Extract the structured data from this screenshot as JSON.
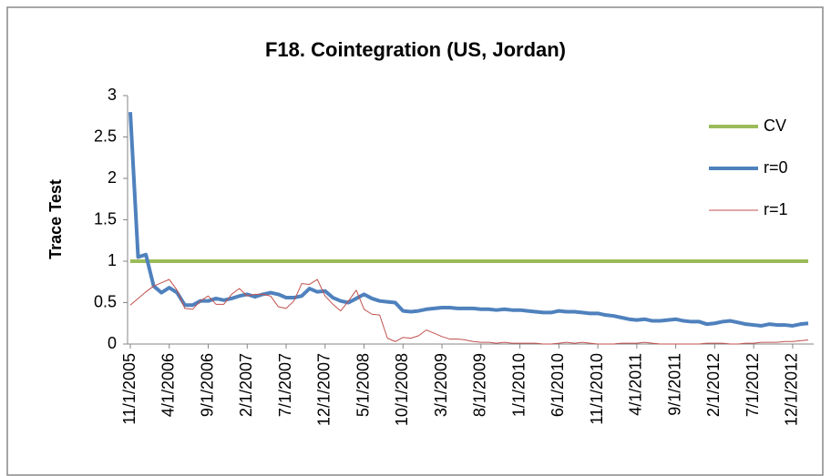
{
  "chart_data": {
    "type": "line",
    "title": "F18. Cointegration (US, Jordan)",
    "y_label": "Trace Test",
    "categories": [
      "11/1/2005",
      null,
      null,
      null,
      null,
      "4/1/2006",
      null,
      null,
      null,
      null,
      "9/1/2006",
      null,
      null,
      null,
      null,
      "2/1/2007",
      null,
      null,
      null,
      null,
      "7/1/2007",
      null,
      null,
      null,
      null,
      "12/1/2007",
      null,
      null,
      null,
      null,
      "5/1/2008",
      null,
      null,
      null,
      null,
      "10/1/2008",
      null,
      null,
      null,
      null,
      "3/1/2009",
      null,
      null,
      null,
      null,
      "8/1/2009",
      null,
      null,
      null,
      null,
      "1/1/2010",
      null,
      null,
      null,
      null,
      "6/1/2010",
      null,
      null,
      null,
      null,
      "11/1/2010",
      null,
      null,
      null,
      null,
      "4/1/2011",
      null,
      null,
      null,
      null,
      "9/1/2011",
      null,
      null,
      null,
      null,
      "2/1/2012",
      null,
      null,
      null,
      null,
      "7/1/2012",
      null,
      null,
      null,
      null,
      "12/1/2012",
      null,
      null
    ],
    "series": [
      {
        "name": "CV",
        "color": "#9bbb59",
        "width": 4,
        "values": [
          1,
          1,
          1,
          1,
          1,
          1,
          1,
          1,
          1,
          1,
          1,
          1,
          1,
          1,
          1,
          1,
          1,
          1,
          1,
          1,
          1,
          1,
          1,
          1,
          1,
          1,
          1,
          1,
          1,
          1,
          1,
          1,
          1,
          1,
          1,
          1,
          1,
          1,
          1,
          1,
          1,
          1,
          1,
          1,
          1,
          1,
          1,
          1,
          1,
          1,
          1,
          1,
          1,
          1,
          1,
          1,
          1,
          1,
          1,
          1,
          1,
          1,
          1,
          1,
          1,
          1,
          1,
          1,
          1,
          1,
          1,
          1,
          1,
          1,
          1,
          1,
          1,
          1,
          1,
          1,
          1,
          1,
          1,
          1,
          1,
          1,
          1,
          1
        ]
      },
      {
        "name": "r=0",
        "color": "#4f81bd",
        "width": 4,
        "values": [
          2.8,
          1.05,
          1.08,
          0.7,
          0.62,
          0.68,
          0.62,
          0.47,
          0.47,
          0.52,
          0.52,
          0.55,
          0.53,
          0.55,
          0.58,
          0.6,
          0.57,
          0.6,
          0.62,
          0.6,
          0.56,
          0.56,
          0.58,
          0.67,
          0.63,
          0.64,
          0.56,
          0.52,
          0.5,
          0.55,
          0.6,
          0.55,
          0.52,
          0.51,
          0.5,
          0.4,
          0.39,
          0.4,
          0.42,
          0.43,
          0.44,
          0.44,
          0.43,
          0.43,
          0.43,
          0.42,
          0.42,
          0.41,
          0.42,
          0.41,
          0.41,
          0.4,
          0.39,
          0.38,
          0.38,
          0.4,
          0.39,
          0.39,
          0.38,
          0.37,
          0.37,
          0.35,
          0.34,
          0.32,
          0.3,
          0.29,
          0.3,
          0.28,
          0.28,
          0.29,
          0.3,
          0.28,
          0.27,
          0.27,
          0.24,
          0.25,
          0.27,
          0.28,
          0.26,
          0.24,
          0.23,
          0.22,
          0.24,
          0.23,
          0.23,
          0.22,
          0.24,
          0.25
        ]
      },
      {
        "name": "r=1",
        "color": "#c0504d",
        "width": 1,
        "values": [
          0.47,
          0.55,
          0.63,
          0.7,
          0.74,
          0.78,
          0.65,
          0.43,
          0.42,
          0.52,
          0.58,
          0.48,
          0.48,
          0.6,
          0.67,
          0.58,
          0.6,
          0.6,
          0.58,
          0.45,
          0.43,
          0.52,
          0.73,
          0.72,
          0.78,
          0.58,
          0.48,
          0.4,
          0.52,
          0.65,
          0.42,
          0.36,
          0.35,
          0.07,
          0.03,
          0.08,
          0.07,
          0.1,
          0.17,
          0.13,
          0.09,
          0.06,
          0.06,
          0.05,
          0.03,
          0.02,
          0.02,
          0.01,
          0.02,
          0.01,
          0.01,
          0.01,
          0.01,
          0,
          0,
          0.01,
          0.02,
          0.01,
          0.02,
          0.01,
          0,
          0,
          0,
          0.01,
          0.01,
          0.01,
          0.02,
          0.01,
          0,
          0,
          0,
          0,
          0,
          0,
          0.01,
          0.01,
          0.01,
          0,
          0,
          0.01,
          0.01,
          0.02,
          0.02,
          0.02,
          0.03,
          0.03,
          0.04,
          0.05
        ]
      }
    ],
    "ylim": [
      0,
      3
    ],
    "yticks": [
      0,
      0.5,
      1,
      1.5,
      2,
      2.5,
      3
    ],
    "legend": "right"
  }
}
